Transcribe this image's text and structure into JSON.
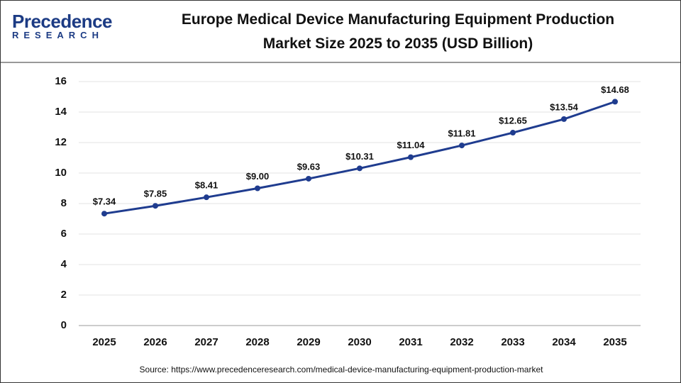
{
  "logo": {
    "name": "Precedence",
    "tagline": "RESEARCH"
  },
  "chart_data": {
    "type": "line",
    "title": "Europe Medical Device Manufacturing Equipment Production Market Size 2025 to 2035 (USD Billion)",
    "categories": [
      "2025",
      "2026",
      "2027",
      "2028",
      "2029",
      "2030",
      "2031",
      "2032",
      "2033",
      "2034",
      "2035"
    ],
    "values": [
      7.34,
      7.85,
      8.41,
      9.0,
      9.63,
      10.31,
      11.04,
      11.81,
      12.65,
      13.54,
      14.68
    ],
    "value_labels": [
      "$7.34",
      "$7.85",
      "$8.41",
      "$9.00",
      "$9.63",
      "$10.31",
      "$11.04",
      "$11.81",
      "$12.65",
      "$13.54",
      "$14.68"
    ],
    "color": "#1f3c8f",
    "ylim": [
      0,
      16
    ],
    "yticks": [
      0,
      2,
      4,
      6,
      8,
      10,
      12,
      14,
      16
    ],
    "grid": true,
    "source": "Source: https://www.precedenceresearch.com/medical-device-manufacturing-equipment-production-market"
  }
}
